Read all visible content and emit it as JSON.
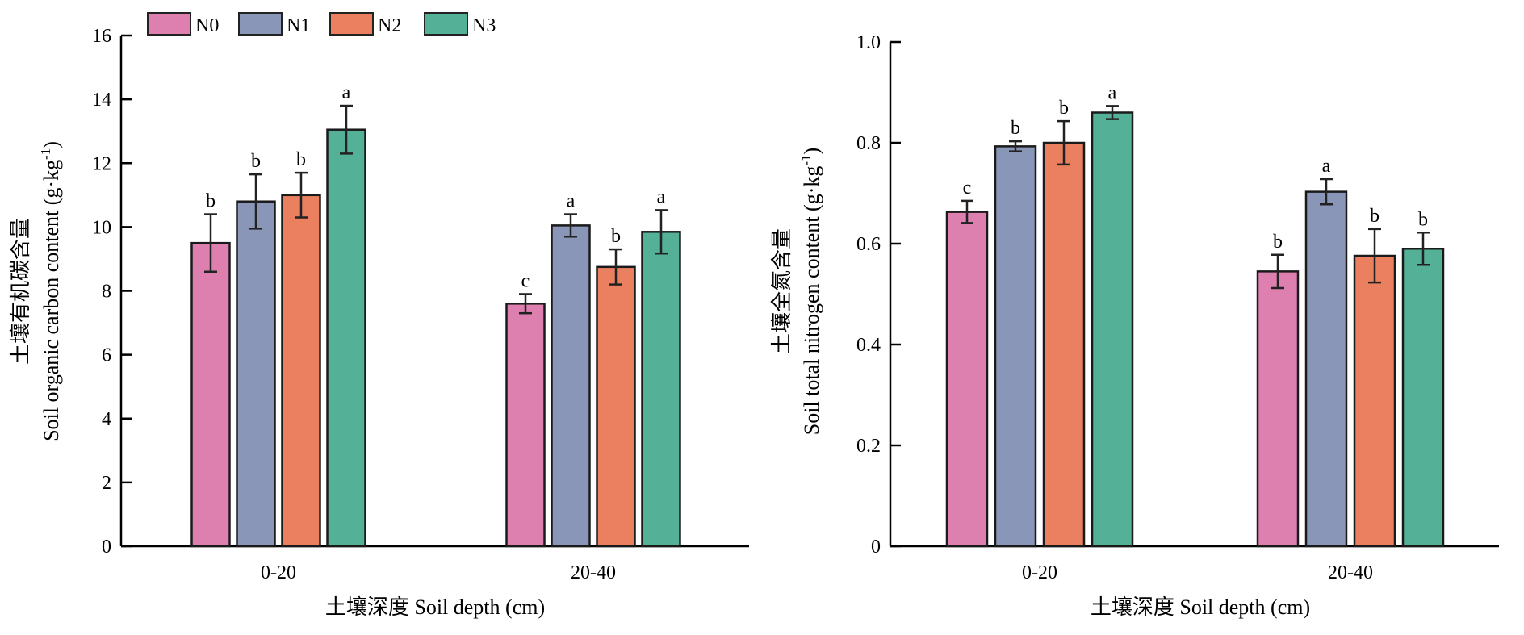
{
  "legend": [
    {
      "name": "N0",
      "color": "#dd80b0"
    },
    {
      "name": "N1",
      "color": "#8a96b8"
    },
    {
      "name": "N2",
      "color": "#ea8060"
    },
    {
      "name": "N3",
      "color": "#54b097"
    }
  ],
  "chart_data": [
    {
      "type": "bar",
      "xlabel": "土壤深度 Soil depth (cm)",
      "ylabel_cn": "土壤有机碳含量",
      "ylabel_en": "Soil organic carbon content (g·kg",
      "ylabel_sup": "-1",
      "ylabel_close": ")",
      "categories": [
        "0-20",
        "20-40"
      ],
      "ylim": [
        0,
        16
      ],
      "yticks": [
        0,
        2,
        4,
        6,
        8,
        10,
        12,
        14,
        16
      ],
      "ytick_labels": [
        "0",
        "2",
        "4",
        "6",
        "8",
        "10",
        "12",
        "14",
        "16"
      ],
      "series": [
        {
          "name": "N0",
          "values": [
            9.5,
            7.6
          ],
          "errors": [
            0.9,
            0.3
          ],
          "letters": [
            "b",
            "c"
          ]
        },
        {
          "name": "N1",
          "values": [
            10.8,
            10.05
          ],
          "errors": [
            0.85,
            0.35
          ],
          "letters": [
            "b",
            "a"
          ]
        },
        {
          "name": "N2",
          "values": [
            11.0,
            8.75
          ],
          "errors": [
            0.7,
            0.55
          ],
          "letters": [
            "b",
            "b"
          ]
        },
        {
          "name": "N3",
          "values": [
            13.05,
            9.85
          ],
          "errors": [
            0.75,
            0.68
          ],
          "letters": [
            "a",
            "a"
          ]
        }
      ]
    },
    {
      "type": "bar",
      "xlabel": "土壤深度 Soil depth (cm)",
      "ylabel_cn": "土壤全氮含量",
      "ylabel_en": "Soil total nitrogen content (g·kg",
      "ylabel_sup": "-1",
      "ylabel_close": ")",
      "categories": [
        "0-20",
        "20-40"
      ],
      "ylim": [
        0,
        1.0
      ],
      "yticks": [
        0,
        0.2,
        0.4,
        0.6,
        0.8,
        1.0
      ],
      "ytick_labels": [
        "0",
        "0.2",
        "0.4",
        "0.6",
        "0.8",
        "1.0"
      ],
      "series": [
        {
          "name": "N0",
          "values": [
            0.663,
            0.545
          ],
          "errors": [
            0.022,
            0.033
          ],
          "letters": [
            "c",
            "b"
          ]
        },
        {
          "name": "N1",
          "values": [
            0.793,
            0.703
          ],
          "errors": [
            0.01,
            0.025
          ],
          "letters": [
            "b",
            "a"
          ]
        },
        {
          "name": "N2",
          "values": [
            0.8,
            0.576
          ],
          "errors": [
            0.043,
            0.053
          ],
          "letters": [
            "b",
            "b"
          ]
        },
        {
          "name": "N3",
          "values": [
            0.86,
            0.59
          ],
          "errors": [
            0.013,
            0.032
          ],
          "letters": [
            "a",
            "b"
          ]
        }
      ]
    }
  ]
}
